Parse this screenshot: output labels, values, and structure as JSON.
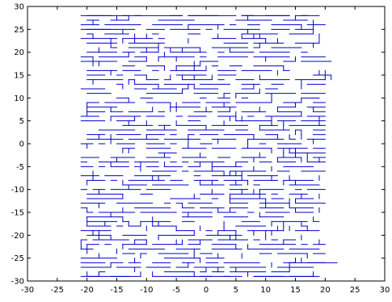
{
  "chart_data": {
    "type": "line",
    "title": "",
    "xlabel": "",
    "ylabel": "",
    "xlim": [
      -30,
      30
    ],
    "ylim": [
      -30,
      30
    ],
    "grid": false,
    "legend": "none",
    "x_ticks": [
      -30,
      -25,
      -20,
      -15,
      -10,
      -5,
      0,
      5,
      10,
      15,
      20,
      25,
      30
    ],
    "y_ticks": [
      -30,
      -25,
      -20,
      -15,
      -10,
      -5,
      0,
      5,
      10,
      15,
      20,
      25,
      30
    ],
    "x_tick_labels": [
      "-30",
      "-25",
      "-20",
      "-15",
      "-10",
      "-5",
      "0",
      "5",
      "10",
      "15",
      "20",
      "25",
      "30"
    ],
    "y_tick_labels": [
      "-30",
      "-25",
      "-20",
      "-15",
      "-10",
      "-5",
      "0",
      "5",
      "10",
      "15",
      "20",
      "25",
      "30"
    ],
    "series": [
      {
        "color": "#0000cc",
        "seed": 7,
        "segments": [
          [
            [
              -21,
              28
            ],
            [
              -13,
              28
            ]
          ],
          [
            [
              -12,
              28
            ],
            [
              -4,
              28
            ]
          ],
          [
            [
              -3,
              28
            ],
            [
              5,
              28
            ]
          ],
          [
            [
              6,
              28
            ],
            [
              14,
              28
            ]
          ],
          [
            [
              15,
              28
            ],
            [
              19,
              28
            ]
          ],
          [
            [
              -21,
              25
            ],
            [
              -15,
              25
            ]
          ],
          [
            [
              -20,
              -24
            ],
            [
              -20,
              -22
            ]
          ],
          [
            [
              -21,
              -23
            ],
            [
              -21,
              -21
            ]
          ],
          [
            [
              19,
              4
            ],
            [
              19,
              6
            ]
          ],
          [
            [
              20,
              14
            ],
            [
              20,
              16
            ]
          ],
          [
            [
              21,
              14
            ],
            [
              21,
              15
            ]
          ],
          [
            [
              -21,
              -29
            ],
            [
              -13,
              -29
            ]
          ],
          [
            [
              -3,
              -29
            ],
            [
              5,
              -29
            ]
          ],
          [
            [
              8,
              -29
            ],
            [
              19,
              -29
            ]
          ],
          [
            [
              14,
              -26
            ],
            [
              22,
              -26
            ]
          ],
          [
            [
              19,
              18
            ],
            [
              21,
              18
            ]
          ],
          [
            [
              19,
              15
            ],
            [
              21,
              15
            ]
          ]
        ]
      }
    ]
  }
}
